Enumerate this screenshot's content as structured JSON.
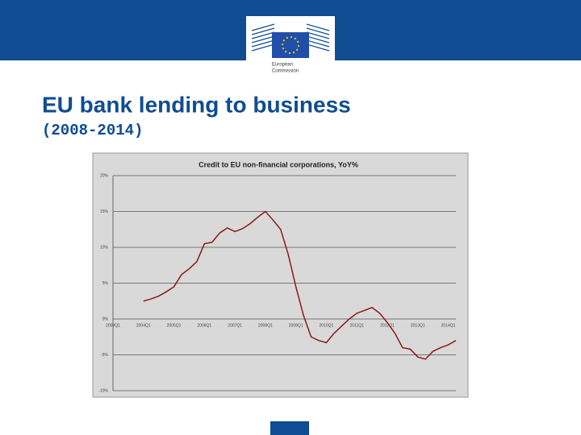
{
  "header": {
    "logo_text": [
      "European",
      "Commission"
    ]
  },
  "slide": {
    "title": "EU bank lending to business",
    "subtitle": "(2008-2014)"
  },
  "chart_data": {
    "type": "line",
    "title": "Credit to EU non-financial corporations, YoY%",
    "categories": [
      "2003Q1",
      null,
      null,
      null,
      "2004Q1",
      null,
      null,
      null,
      "2005Q1",
      null,
      null,
      null,
      "2006Q1",
      null,
      null,
      null,
      "2007Q1",
      null,
      null,
      null,
      "2008Q1",
      null,
      null,
      null,
      "2009Q1",
      null,
      null,
      null,
      "2010Q1",
      null,
      null,
      null,
      "2011Q1",
      null,
      null,
      null,
      "2012Q1",
      null,
      null,
      null,
      "2013Q1",
      null,
      null,
      null,
      "2014Q1",
      null
    ],
    "values": [
      null,
      null,
      null,
      null,
      2.5,
      2.8,
      3.2,
      3.8,
      4.5,
      6.2,
      7.0,
      8.0,
      10.5,
      10.7,
      12.0,
      12.7,
      12.2,
      12.6,
      13.3,
      14.2,
      15.0,
      13.8,
      12.5,
      9.0,
      4.5,
      0.5,
      -2.5,
      -3.0,
      -3.3,
      -2.0,
      -1.0,
      0.0,
      0.8,
      1.2,
      1.6,
      0.8,
      -0.5,
      -2.0,
      -4.0,
      -4.2,
      -5.3,
      -5.6,
      -4.5,
      -4.0,
      -3.6,
      -3.0
    ],
    "color": "#8b1a1a",
    "ylim": [
      -10,
      20
    ],
    "yticks": [
      {
        "value": -10,
        "label": "-10%"
      },
      {
        "value": -5,
        "label": "-5%"
      },
      {
        "value": 0,
        "label": "0%"
      },
      {
        "value": 5,
        "label": "5%"
      },
      {
        "value": 10,
        "label": "10%"
      },
      {
        "value": 15,
        "label": "15%"
      },
      {
        "value": 20,
        "label": "20%"
      }
    ],
    "grid": true
  }
}
